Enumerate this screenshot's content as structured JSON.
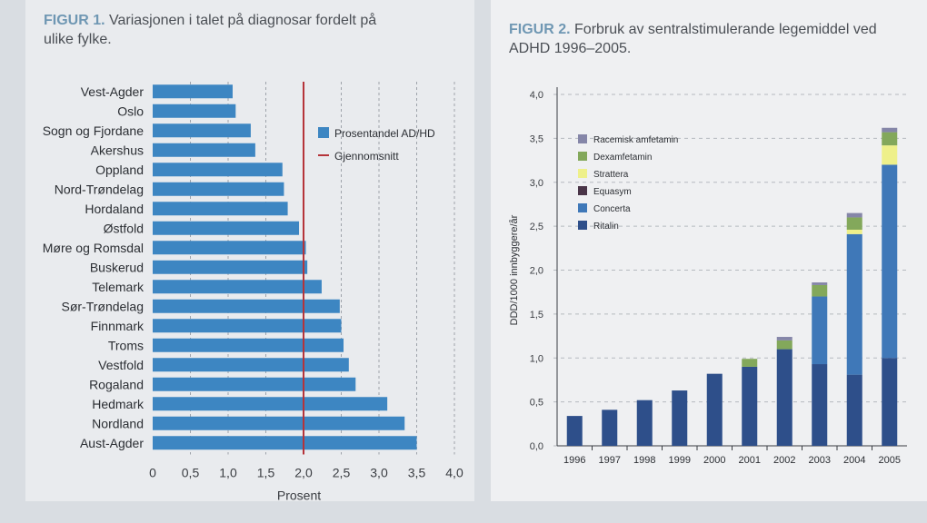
{
  "figure1": {
    "number": "FIGUR 1.",
    "title": "Variasjonen i talet på diagnosar fordelt på ulike fylke.",
    "chart_data": {
      "type": "bar",
      "orientation": "horizontal",
      "categories": [
        "Vest-Agder",
        "Oslo",
        "Sogn og Fjordane",
        "Akershus",
        "Oppland",
        "Nord-Trøndelag",
        "Hordaland",
        "Østfold",
        "Møre og Romsdal",
        "Buskerud",
        "Telemark",
        "Sør-Trøndelag",
        "Finnmark",
        "Troms",
        "Vestfold",
        "Rogaland",
        "Hedmark",
        "Nordland",
        "Aust-Agder"
      ],
      "values": [
        1.06,
        1.1,
        1.3,
        1.36,
        1.72,
        1.74,
        1.79,
        1.94,
        2.03,
        2.05,
        2.24,
        2.48,
        2.5,
        2.53,
        2.6,
        2.69,
        3.11,
        3.34,
        3.5
      ],
      "average": 2.0,
      "xlabel": "Prosent",
      "xlim": [
        0,
        4.0
      ],
      "xticks": [
        "0",
        "0,5",
        "1,0",
        "1,5",
        "2,0",
        "2,5",
        "3,0",
        "3,5",
        "4,0"
      ],
      "grid": "vertical dashed",
      "legend": [
        {
          "label": "Prosentandel AD/HD",
          "color": "#3d86c2",
          "kind": "box"
        },
        {
          "label": "Gjennomsnitt",
          "color": "#b5343a",
          "kind": "line"
        }
      ],
      "legend_position": "right",
      "bar_color": "#3d86c2",
      "average_color": "#b5343a"
    }
  },
  "figure2": {
    "number": "FIGUR 2.",
    "title": "Forbruk av sentralstimulerande legemiddel ved ADHD 1996–2005.",
    "chart_data": {
      "type": "bar",
      "stacked": true,
      "categories": [
        "1996",
        "1997",
        "1998",
        "1999",
        "2000",
        "2001",
        "2002",
        "2003",
        "2004",
        "2005"
      ],
      "series": [
        {
          "name": "Ritalin",
          "color": "#2e4f8a",
          "values": [
            0.34,
            0.41,
            0.52,
            0.63,
            0.82,
            0.9,
            1.1,
            0.93,
            0.81,
            1.0
          ]
        },
        {
          "name": "Concerta",
          "color": "#3f78b8",
          "values": [
            0,
            0,
            0,
            0,
            0,
            0,
            0,
            0.77,
            1.6,
            2.2
          ]
        },
        {
          "name": "Equasym",
          "color": "#4a3548",
          "values": [
            0,
            0,
            0,
            0,
            0,
            0,
            0,
            0,
            0,
            0
          ]
        },
        {
          "name": "Strattera",
          "color": "#eef08a",
          "values": [
            0,
            0,
            0,
            0,
            0,
            0,
            0,
            0,
            0.05,
            0.22
          ]
        },
        {
          "name": "Dexamfetamin",
          "color": "#83a85b",
          "values": [
            0,
            0,
            0,
            0,
            0,
            0.09,
            0.1,
            0.13,
            0.14,
            0.15
          ]
        },
        {
          "name": "Racemisk amfetamin",
          "color": "#8586a8",
          "values": [
            0,
            0,
            0,
            0,
            0,
            0,
            0.04,
            0.03,
            0.05,
            0.05
          ]
        }
      ],
      "ylabel": "DDD/1000 innbyggere/år",
      "ylim": [
        0,
        4.0
      ],
      "yticks": [
        "0,0",
        "0,5",
        "1,0",
        "1,5",
        "2,0",
        "2,5",
        "3,0",
        "3,5",
        "4,0"
      ],
      "grid": "horizontal dashed",
      "legend_position": "top-left",
      "legend_order": [
        "Racemisk amfetamin",
        "Dexamfetamin",
        "Strattera",
        "Equasym",
        "Concerta",
        "Ritalin"
      ]
    }
  }
}
